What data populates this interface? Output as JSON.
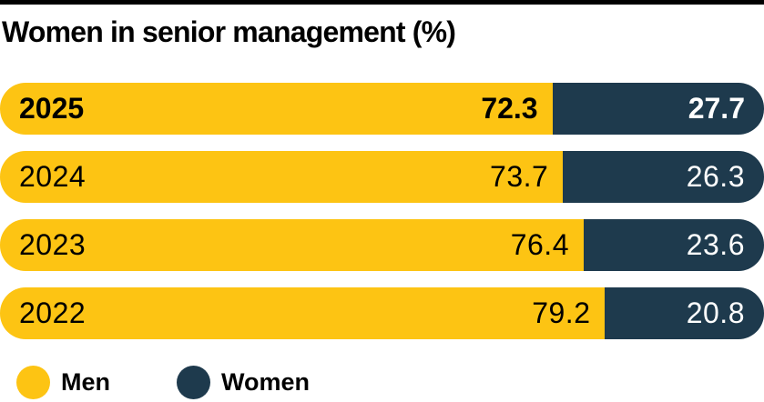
{
  "title": "Women in senior management (%)",
  "chart_data": {
    "type": "bar",
    "orientation": "horizontal",
    "stacked": true,
    "unit": "%",
    "title": "Women in senior management (%)",
    "categories": [
      "2025",
      "2024",
      "2023",
      "2022"
    ],
    "series": [
      {
        "name": "Men",
        "color": "#fdc413",
        "values": [
          72.3,
          73.7,
          76.4,
          79.2
        ]
      },
      {
        "name": "Women",
        "color": "#1e3a4d",
        "values": [
          27.7,
          26.3,
          23.6,
          20.8
        ]
      }
    ],
    "xlim": [
      0,
      100
    ],
    "value_labels": true,
    "emphasized_category": "2025",
    "legend_position": "bottom",
    "grid": false
  },
  "colors": {
    "men": "#fdc413",
    "women": "#1e3a4d",
    "top_rule": "#000000",
    "background": "#ffffff",
    "title_text": "#000000",
    "value_on_men": "#000000",
    "value_on_women": "#ffffff"
  }
}
